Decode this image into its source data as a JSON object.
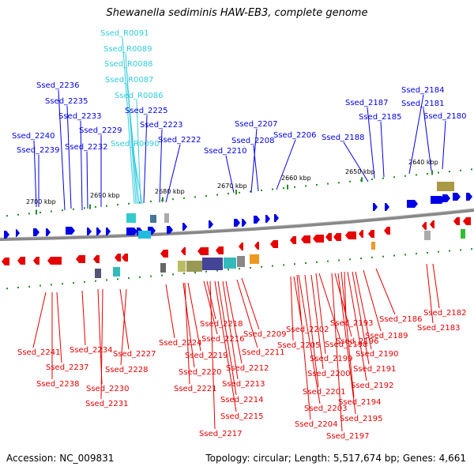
{
  "title": "Shewanella sediminis HAW-EB3, complete genome",
  "footer": {
    "accession": "Accession: NC_009831",
    "summary": "Topology: circular; Length: 5,517,674 bp; Genes: 4,661"
  },
  "colors": {
    "forward_gene": "#0000e6",
    "reverse_gene": "#e60000",
    "rna": "#33ccdd",
    "backbone": "#888888",
    "tick": "#228b22"
  },
  "scale_labels": [
    "2700 kbp",
    "2690 kbp",
    "2680 kbp",
    "2670 kbp",
    "2660 kbp",
    "2650 kbp",
    "2640 kbp"
  ],
  "forward_labels": [
    "Ssed_2240",
    "Ssed_2239",
    "Ssed_2236",
    "Ssed_2235",
    "Ssed_2233",
    "Ssed_2232",
    "Ssed_2229",
    "Ssed_R0091",
    "Ssed_R0089",
    "Ssed_R0088",
    "Ssed_R0087",
    "Ssed_R0086",
    "Ssed_2225",
    "Ssed_R0090",
    "Ssed_2223",
    "Ssed_2222",
    "Ssed_2210",
    "Ssed_2208",
    "Ssed_2207",
    "Ssed_2206",
    "Ssed_2188",
    "Ssed_2187",
    "Ssed_2185",
    "Ssed_2184",
    "Ssed_2181",
    "Ssed_2180"
  ],
  "reverse_labels": [
    "Ssed_2241",
    "Ssed_2237",
    "Ssed_2238",
    "Ssed_2234",
    "Ssed_2230",
    "Ssed_2231",
    "Ssed_2227",
    "Ssed_2228",
    "Ssed_2224",
    "Ssed_2220",
    "Ssed_2221",
    "Ssed_2219",
    "Ssed_2216",
    "Ssed_2217",
    "Ssed_2218",
    "Ssed_2215",
    "Ssed_2214",
    "Ssed_2213",
    "Ssed_2212",
    "Ssed_2211",
    "Ssed_2209",
    "Ssed_2202",
    "Ssed_2205",
    "Ssed_2203",
    "Ssed_2204",
    "Ssed_2201",
    "Ssed_2200",
    "Ssed_2199",
    "Ssed_2198",
    "Ssed_2197",
    "Ssed_2196",
    "Ssed_2195",
    "Ssed_2194",
    "Ssed_2193",
    "Ssed_2192",
    "Ssed_2191",
    "Ssed_2190",
    "Ssed_2189",
    "Ssed_2186",
    "Ssed_2183",
    "Ssed_2182"
  ]
}
